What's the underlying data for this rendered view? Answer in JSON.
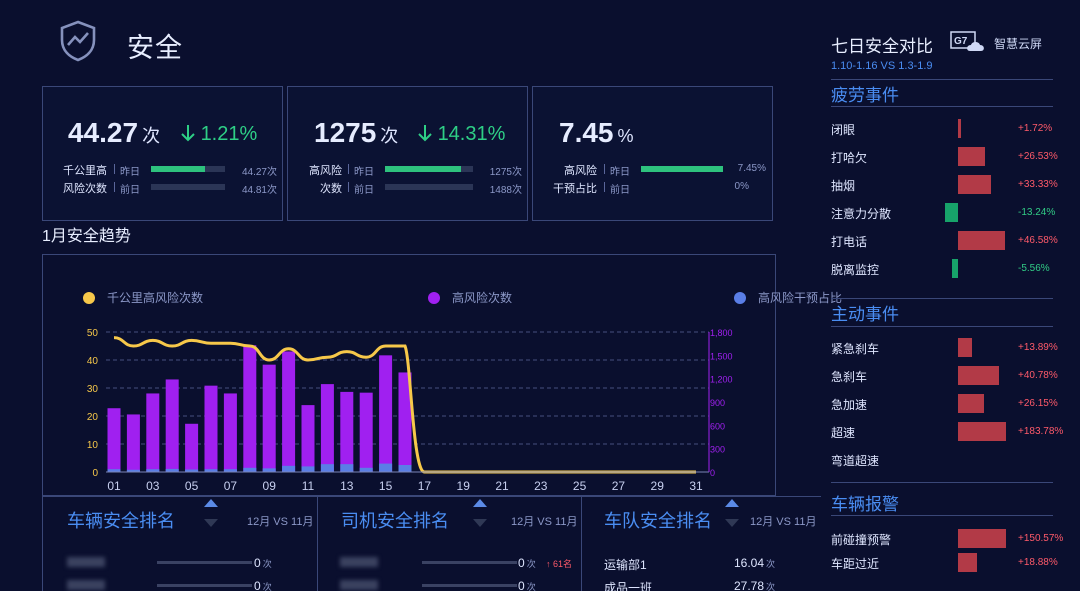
{
  "header": {
    "title": "安全",
    "icon": "shield-chart-icon"
  },
  "kpis": [
    {
      "value": "44.27",
      "unit": "次",
      "change": "1.21%",
      "change_dir": "down",
      "label_l1": "千公里高",
      "label_l2": "风险次数",
      "row1": {
        "tag": "昨日",
        "value": "44.27次",
        "fill": 0.73
      },
      "row2": {
        "tag": "前日",
        "value": "44.81次",
        "fill": 1.0
      }
    },
    {
      "value": "1275",
      "unit": "次",
      "change": "14.31%",
      "change_dir": "down",
      "label_l1": "高风险",
      "label_l2": "次数",
      "row1": {
        "tag": "昨日",
        "value": "1275次",
        "fill": 0.86
      },
      "row2": {
        "tag": "前日",
        "value": "1488次",
        "fill": 1.0
      }
    },
    {
      "value": "7.45",
      "unit": "%",
      "change": "",
      "change_dir": "",
      "label_l1": "高风险",
      "label_l2": "干预占比",
      "row1": {
        "tag": "昨日",
        "value": "7.45%",
        "fill": 1.0
      },
      "row2": {
        "tag": "前日",
        "value": "0%",
        "fill": 0.0
      }
    }
  ],
  "trend": {
    "title": "1月安全趋势",
    "legend": [
      "千公里高风险次数",
      "高风险次数",
      "高风险干预占比"
    ]
  },
  "chart_data": {
    "type": "bar",
    "x": [
      "01",
      "02",
      "03",
      "04",
      "05",
      "06",
      "07",
      "08",
      "09",
      "10",
      "11",
      "12",
      "13",
      "14",
      "15",
      "16",
      "17",
      "18",
      "19",
      "20",
      "21",
      "22",
      "23",
      "24",
      "25",
      "26",
      "27",
      "28",
      "29",
      "30",
      "31"
    ],
    "x_tick_labels": [
      "01",
      "03",
      "05",
      "07",
      "09",
      "11",
      "13",
      "15",
      "17",
      "19",
      "21",
      "23",
      "25",
      "27",
      "29",
      "31"
    ],
    "y_left_ticks": [
      "0",
      "10",
      "20",
      "30",
      "40",
      "50"
    ],
    "y_right_ticks": [
      "0",
      "300",
      "600",
      "900",
      "1,200",
      "1,500",
      "1,800"
    ],
    "ylim_left": [
      0,
      50
    ],
    "ylim_right": [
      0,
      1800
    ],
    "grid": true,
    "legend_position": "top",
    "series": [
      {
        "name": "高风险次数",
        "type": "bar",
        "axis": "right",
        "color": "#a020f0",
        "values": [
          820,
          740,
          1010,
          1190,
          620,
          1110,
          1010,
          1630,
          1380,
          1550,
          860,
          1130,
          1030,
          1020,
          1500,
          1280,
          0,
          0,
          0,
          0,
          0,
          0,
          0,
          0,
          0,
          0,
          0,
          0,
          0,
          0,
          0
        ]
      },
      {
        "name": "高风险干预占比",
        "type": "bar",
        "axis": "left",
        "color": "#5a7ee6",
        "values": [
          1.0,
          0.8,
          1.0,
          1.1,
          0.9,
          1.0,
          1.0,
          1.5,
          1.3,
          2.2,
          2.0,
          2.8,
          2.8,
          1.5,
          3.0,
          2.5,
          0,
          0,
          0,
          0,
          0,
          0,
          0,
          0,
          0,
          0,
          0,
          0,
          0,
          0,
          0
        ]
      },
      {
        "name": "千公里高风险次数",
        "type": "line",
        "axis": "left",
        "color": "#f7c84a",
        "values": [
          48,
          45,
          47,
          45,
          47,
          46,
          46,
          45,
          40,
          44,
          40,
          41,
          43,
          41,
          45,
          45,
          0,
          0,
          0,
          0,
          0,
          0,
          0,
          0,
          0,
          0,
          0,
          0,
          0,
          0,
          0
        ]
      }
    ]
  },
  "rankings": [
    {
      "title": "车辆安全排名",
      "period": "12月 VS 11月",
      "rows": [
        {
          "value": "0",
          "unit": "次"
        },
        {
          "value": "0",
          "unit": "次"
        }
      ]
    },
    {
      "title": "司机安全排名",
      "period": "12月 VS 11月",
      "rows": [
        {
          "value": "0",
          "unit": "次",
          "rank_change": "61名"
        },
        {
          "value": "0",
          "unit": "次"
        }
      ]
    },
    {
      "title": "车队安全排名",
      "period": "12月 VS 11月",
      "rows": [
        {
          "name": "运输部1",
          "value": "16.04",
          "unit": "次"
        },
        {
          "name": "成品一班",
          "value": "27.78",
          "unit": "次"
        }
      ]
    }
  ],
  "comparison": {
    "title": "七日安全对比",
    "subtitle": "1.10-1.16 VS 1.3-1.9",
    "logo_text": "智慧云屏",
    "logo_mark": "G7",
    "colors": {
      "up": "#ff5a6a",
      "down": "#31cc86"
    },
    "sections": [
      {
        "title": "疲劳事件",
        "items": [
          {
            "label": "闭眼",
            "change": "+1.72%",
            "value": 1.72
          },
          {
            "label": "打哈欠",
            "change": "+26.53%",
            "value": 26.53
          },
          {
            "label": "抽烟",
            "change": "+33.33%",
            "value": 33.33
          },
          {
            "label": "注意力分散",
            "change": "-13.24%",
            "value": -13.24
          },
          {
            "label": "打电话",
            "change": "+46.58%",
            "value": 46.58
          },
          {
            "label": "脱离监控",
            "change": "-5.56%",
            "value": -5.56
          }
        ]
      },
      {
        "title": "主动事件",
        "items": [
          {
            "label": "紧急刹车",
            "change": "+13.89%",
            "value": 13.89
          },
          {
            "label": "急刹车",
            "change": "+40.78%",
            "value": 40.78
          },
          {
            "label": "急加速",
            "change": "+26.15%",
            "value": 26.15
          },
          {
            "label": "超速",
            "change": "+183.78%",
            "value": 183.78
          },
          {
            "label": "弯道超速",
            "change": "",
            "value": 0
          }
        ]
      },
      {
        "title": "车辆报警",
        "items": [
          {
            "label": "前碰撞预警",
            "change": "+150.57%",
            "value": 150.57
          },
          {
            "label": "车距过近",
            "change": "+18.88%",
            "value": 18.88
          }
        ]
      }
    ]
  }
}
